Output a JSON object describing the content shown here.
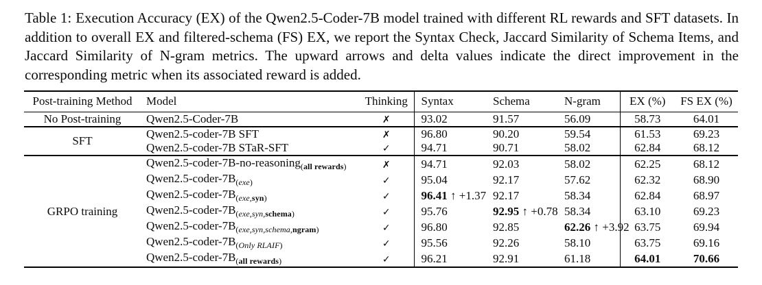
{
  "caption": {
    "label": "Table 1:",
    "text": "Execution Accuracy (EX) of the Qwen2.5-Coder-7B model trained with different RL rewards and SFT datasets. In addition to overall EX and filtered-schema (FS) EX, we report the Syntax Check, Jaccard Similarity of Schema Items, and Jaccard Similarity of N-gram metrics. The upward arrows and delta values indicate the direct improvement in the corresponding metric when its associated reward is added."
  },
  "table": {
    "headers": [
      "Post-training Method",
      "Model",
      "Thinking",
      "Syntax",
      "Schema",
      "N-gram",
      "EX (%)",
      "FS EX (%)"
    ],
    "marks": {
      "yes": "✓",
      "no": "✗"
    },
    "arrow": "↑",
    "groups": [
      {
        "method": "No Post-training",
        "rows": [
          {
            "model": "Qwen2.5-Coder-7B",
            "sub": [],
            "think": "no",
            "cells": [
              {
                "v": "93.02"
              },
              {
                "v": "91.57"
              },
              {
                "v": "56.09"
              },
              {
                "v": "58.73"
              },
              {
                "v": "64.01"
              }
            ]
          }
        ]
      },
      {
        "method": "SFT",
        "rows": [
          {
            "model": "Qwen2.5-coder-7B SFT",
            "sub": [],
            "think": "no",
            "cells": [
              {
                "v": "96.80"
              },
              {
                "v": "90.20"
              },
              {
                "v": "59.54"
              },
              {
                "v": "61.53"
              },
              {
                "v": "69.23"
              }
            ]
          },
          {
            "model": "Qwen2.5-coder-7B STaR-SFT",
            "sub": [],
            "think": "yes",
            "cells": [
              {
                "v": "94.71"
              },
              {
                "v": "90.71"
              },
              {
                "v": "58.02"
              },
              {
                "v": "62.84"
              },
              {
                "v": "68.12"
              }
            ]
          }
        ]
      },
      {
        "method": "GRPO training",
        "rows": [
          {
            "model": "Qwen2.5-coder-7B-no-reasoning",
            "sub": [
              {
                "t": "("
              },
              {
                "t": "all rewards",
                "b": true
              },
              {
                "t": ")"
              }
            ],
            "think": "no",
            "cells": [
              {
                "v": "94.71"
              },
              {
                "v": "92.03"
              },
              {
                "v": "58.02"
              },
              {
                "v": "62.25"
              },
              {
                "v": "68.12"
              }
            ]
          },
          {
            "model": "Qwen2.5-coder-7B",
            "sub": [
              {
                "t": "("
              },
              {
                "t": "exe",
                "i": true
              },
              {
                "t": ")"
              }
            ],
            "think": "yes",
            "cells": [
              {
                "v": "95.04"
              },
              {
                "v": "92.17"
              },
              {
                "v": "57.62"
              },
              {
                "v": "62.32"
              },
              {
                "v": "68.90"
              }
            ]
          },
          {
            "model": "Qwen2.5-coder-7B",
            "sub": [
              {
                "t": "("
              },
              {
                "t": "exe,",
                "i": true
              },
              {
                "t": "syn",
                "b": true
              },
              {
                "t": ")"
              }
            ],
            "think": "yes",
            "cells": [
              {
                "v": "96.41",
                "b": true,
                "d": "+1.37"
              },
              {
                "v": "92.17"
              },
              {
                "v": "58.34"
              },
              {
                "v": "62.84"
              },
              {
                "v": "68.97"
              }
            ]
          },
          {
            "model": "Qwen2.5-coder-7B",
            "sub": [
              {
                "t": "("
              },
              {
                "t": "exe,syn,",
                "i": true
              },
              {
                "t": "schema",
                "b": true
              },
              {
                "t": ")"
              }
            ],
            "think": "yes",
            "cells": [
              {
                "v": "95.76"
              },
              {
                "v": "92.95",
                "b": true,
                "d": "+0.78"
              },
              {
                "v": "58.34"
              },
              {
                "v": "63.10"
              },
              {
                "v": "69.23"
              }
            ]
          },
          {
            "model": "Qwen2.5-coder-7B",
            "sub": [
              {
                "t": "("
              },
              {
                "t": "exe,syn,schema,",
                "i": true
              },
              {
                "t": "ngram",
                "b": true
              },
              {
                "t": ")"
              }
            ],
            "think": "yes",
            "cells": [
              {
                "v": "96.80"
              },
              {
                "v": "92.85"
              },
              {
                "v": "62.26",
                "b": true,
                "d": "+3.92"
              },
              {
                "v": "63.75"
              },
              {
                "v": "69.94"
              }
            ]
          },
          {
            "model": "Qwen2.5-coder-7B",
            "sub": [
              {
                "t": "("
              },
              {
                "t": "Only RLAIF",
                "i": true
              },
              {
                "t": ")"
              }
            ],
            "think": "yes",
            "cells": [
              {
                "v": "95.56"
              },
              {
                "v": "92.26"
              },
              {
                "v": "58.10"
              },
              {
                "v": "63.75"
              },
              {
                "v": "69.16"
              }
            ]
          },
          {
            "model": "Qwen2.5-coder-7B",
            "sub": [
              {
                "t": "("
              },
              {
                "t": "all rewards",
                "b": true
              },
              {
                "t": ")"
              }
            ],
            "think": "yes",
            "cells": [
              {
                "v": "96.21"
              },
              {
                "v": "92.91"
              },
              {
                "v": "61.18"
              },
              {
                "v": "64.01",
                "b": true
              },
              {
                "v": "70.66",
                "b": true
              }
            ]
          }
        ]
      }
    ]
  }
}
